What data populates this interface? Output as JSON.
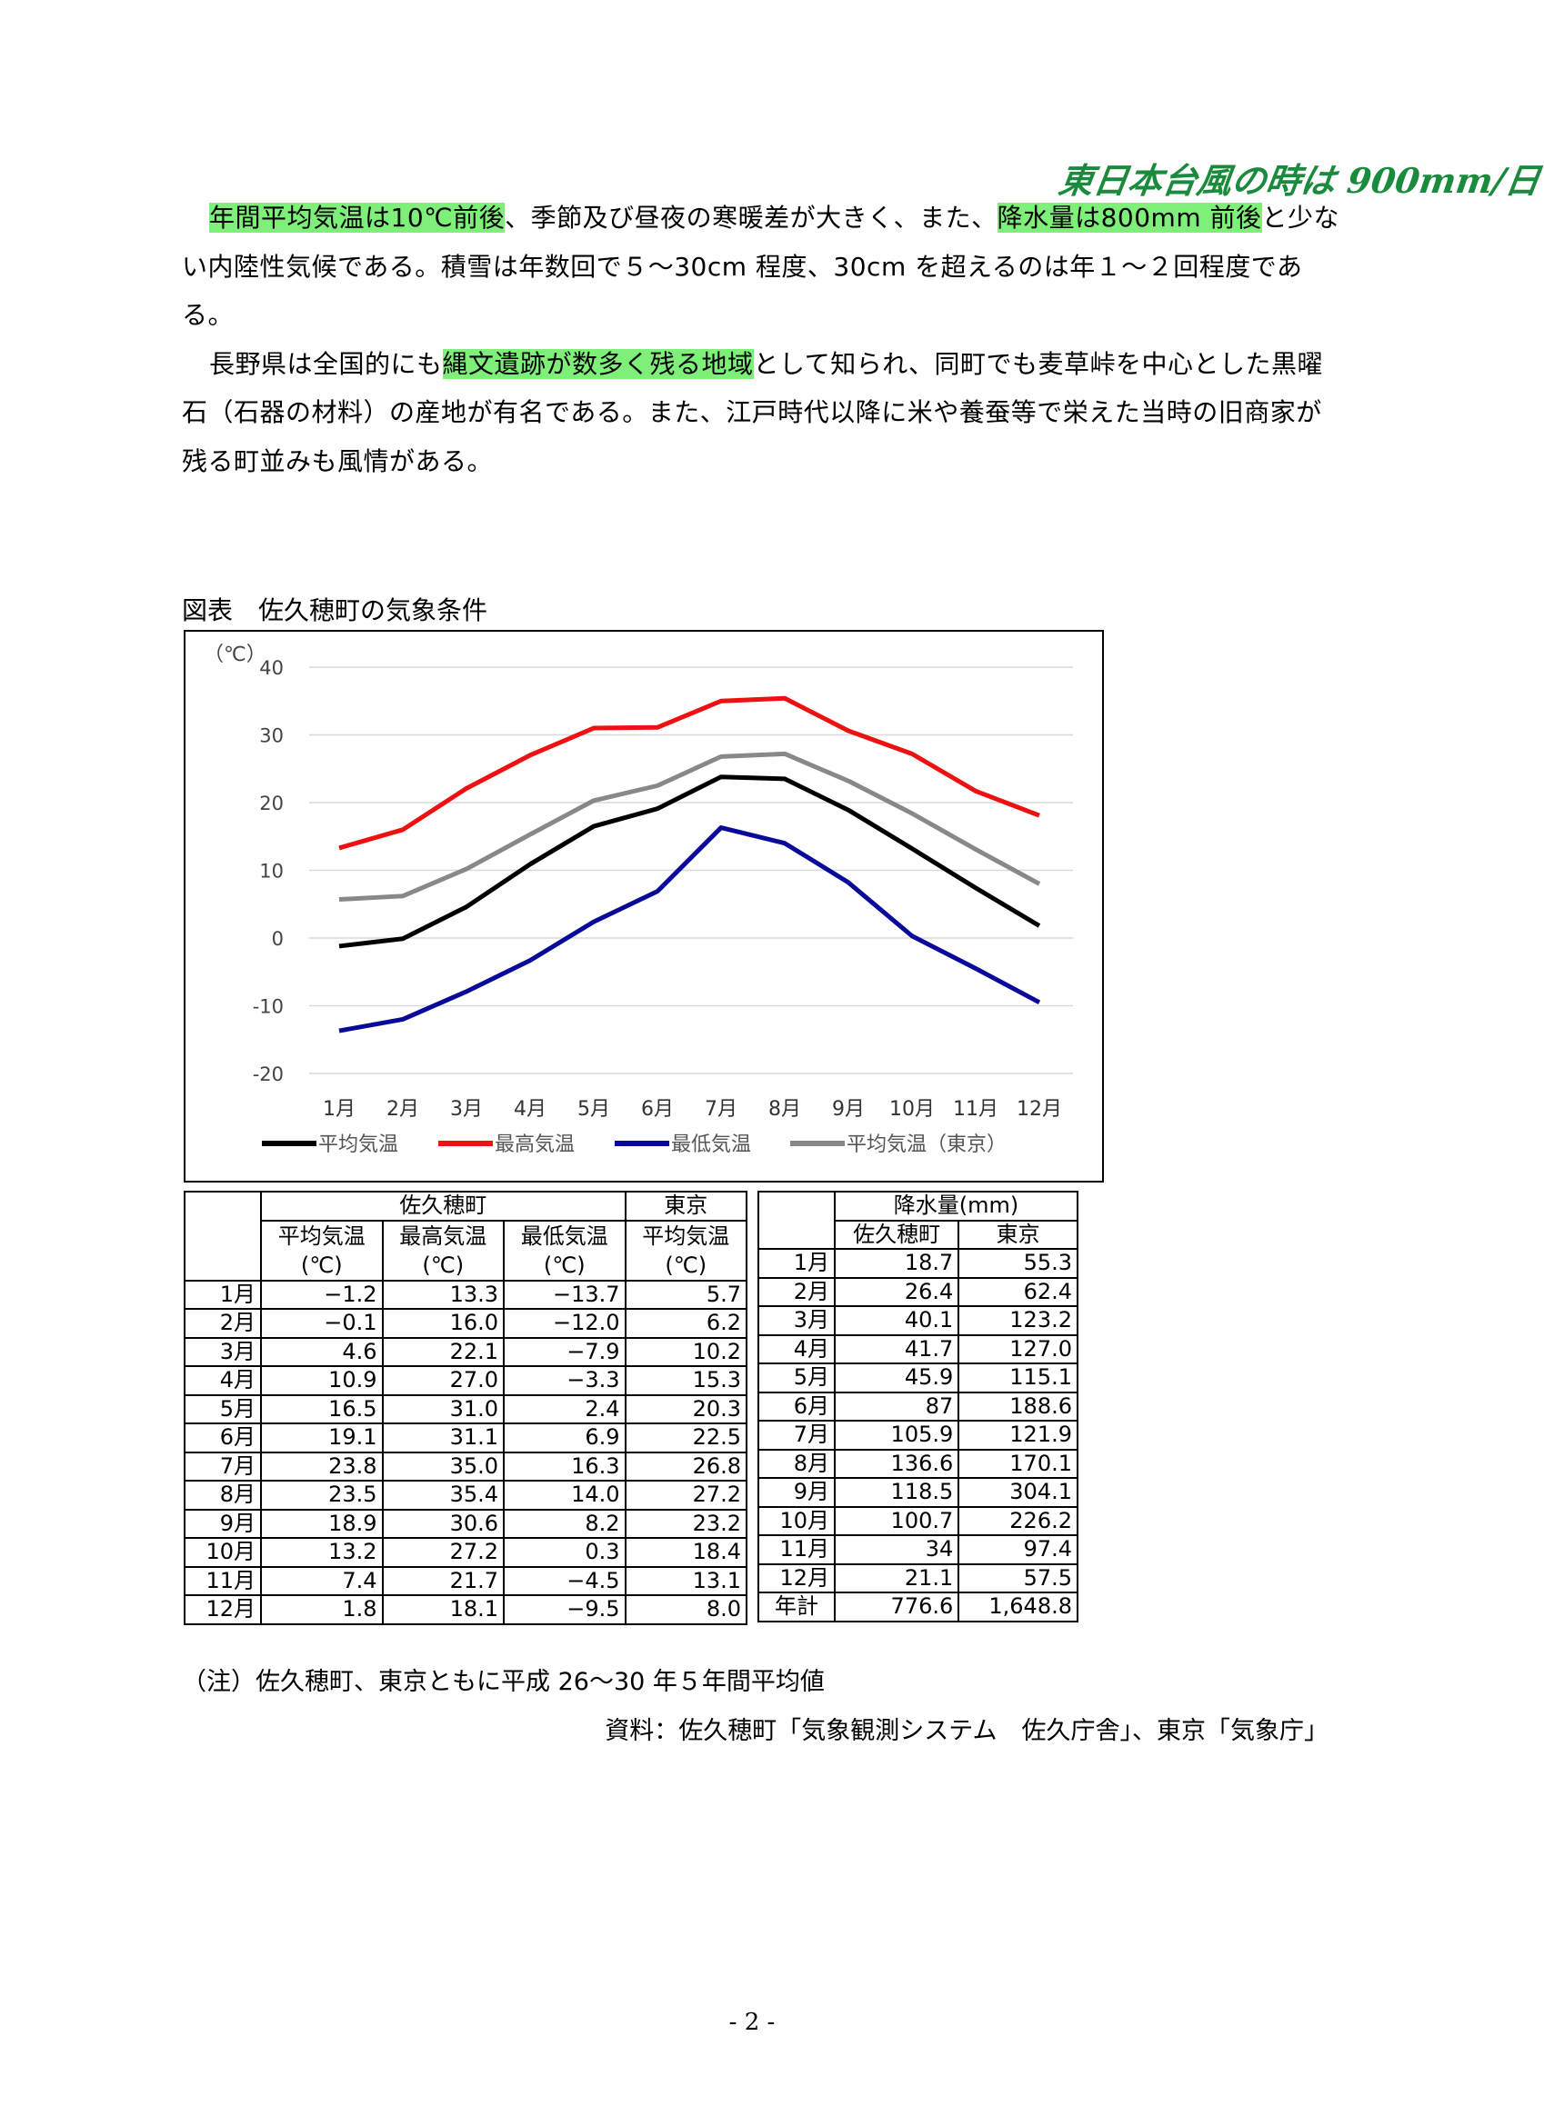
{
  "handwritten_note": "東日本台風の時は 900mm/日",
  "paragraphs": [
    [
      {
        "t": "年間平均気温は10℃前後",
        "hl": true
      },
      {
        "t": "、季節及び昼夜の寒暖差が大きく、また、",
        "hl": false
      },
      {
        "t": "降水量は800mm 前後",
        "hl": true
      },
      {
        "t": "と少ない内陸性気候である。積雪は年数回で５～30cm 程度、30cm を超えるのは年１～２回程度である。",
        "hl": false
      }
    ],
    [
      {
        "t": "長野県は全国的にも",
        "hl": false
      },
      {
        "t": "縄文遺跡が数多く残る地域",
        "hl": true
      },
      {
        "t": "として知られ、同町でも麦草峠を中心とした黒曜石（石器の材料）の産地が有名である。また、江戸時代以降に米や養蚕等で栄えた当時の旧商家が残る町並みも風情がある。",
        "hl": false
      }
    ]
  ],
  "figure_caption": "図表　佐久穂町の気象条件",
  "chart_data": {
    "type": "line",
    "ylabel": "（℃）",
    "ylim": [
      -20,
      40
    ],
    "yticks": [
      40,
      30,
      20,
      10,
      0,
      -10,
      -20
    ],
    "grid": true,
    "legend_position": "bottom",
    "categories": [
      "1月",
      "2月",
      "3月",
      "4月",
      "5月",
      "6月",
      "7月",
      "8月",
      "9月",
      "10月",
      "11月",
      "12月"
    ],
    "series": [
      {
        "name": "平均気温",
        "color": "#000000",
        "values": [
          -1.2,
          -0.1,
          4.6,
          10.9,
          16.5,
          19.1,
          23.8,
          23.5,
          18.9,
          13.2,
          7.4,
          1.8
        ]
      },
      {
        "name": "最高気温",
        "color": "#ee1111",
        "values": [
          13.3,
          16.0,
          22.1,
          27.0,
          31.0,
          31.1,
          35.0,
          35.4,
          30.6,
          27.2,
          21.7,
          18.1
        ]
      },
      {
        "name": "最低気温",
        "color": "#0a0a9a",
        "values": [
          -13.7,
          -12.0,
          -7.9,
          -3.3,
          2.4,
          6.9,
          16.3,
          14.0,
          8.2,
          0.3,
          -4.5,
          -9.5
        ]
      },
      {
        "name": "平均気温（東京）",
        "color": "#888888",
        "values": [
          5.7,
          6.2,
          10.2,
          15.3,
          20.3,
          22.5,
          26.8,
          27.2,
          23.2,
          18.4,
          13.1,
          8.0
        ]
      }
    ]
  },
  "temp_table": {
    "group1": "佐久穂町",
    "group2": "東京",
    "columns": [
      [
        "平均気温",
        "(℃)"
      ],
      [
        "最高気温",
        "(℃)"
      ],
      [
        "最低気温",
        "(℃)"
      ],
      [
        "平均気温",
        "(℃)"
      ]
    ],
    "rows": [
      [
        "1月",
        "−1.2",
        "13.3",
        "−13.7",
        "5.7"
      ],
      [
        "2月",
        "−0.1",
        "16.0",
        "−12.0",
        "6.2"
      ],
      [
        "3月",
        "4.6",
        "22.1",
        "−7.9",
        "10.2"
      ],
      [
        "4月",
        "10.9",
        "27.0",
        "−3.3",
        "15.3"
      ],
      [
        "5月",
        "16.5",
        "31.0",
        "2.4",
        "20.3"
      ],
      [
        "6月",
        "19.1",
        "31.1",
        "6.9",
        "22.5"
      ],
      [
        "7月",
        "23.8",
        "35.0",
        "16.3",
        "26.8"
      ],
      [
        "8月",
        "23.5",
        "35.4",
        "14.0",
        "27.2"
      ],
      [
        "9月",
        "18.9",
        "30.6",
        "8.2",
        "23.2"
      ],
      [
        "10月",
        "13.2",
        "27.2",
        "0.3",
        "18.4"
      ],
      [
        "11月",
        "7.4",
        "21.7",
        "−4.5",
        "13.1"
      ],
      [
        "12月",
        "1.8",
        "18.1",
        "−9.5",
        "8.0"
      ]
    ]
  },
  "rain_table": {
    "title": "降水量(mm)",
    "columns": [
      "佐久穂町",
      "東京"
    ],
    "rows": [
      [
        "1月",
        "18.7",
        "55.3"
      ],
      [
        "2月",
        "26.4",
        "62.4"
      ],
      [
        "3月",
        "40.1",
        "123.2"
      ],
      [
        "4月",
        "41.7",
        "127.0"
      ],
      [
        "5月",
        "45.9",
        "115.1"
      ],
      [
        "6月",
        "87",
        "188.6"
      ],
      [
        "7月",
        "105.9",
        "121.9"
      ],
      [
        "8月",
        "136.6",
        "170.1"
      ],
      [
        "9月",
        "118.5",
        "304.1"
      ],
      [
        "10月",
        "100.7",
        "226.2"
      ],
      [
        "11月",
        "34",
        "97.4"
      ],
      [
        "12月",
        "21.1",
        "57.5"
      ],
      [
        "年計",
        "776.6",
        "1,648.8"
      ]
    ]
  },
  "note": "（注）佐久穂町、東京ともに平成 26～30 年５年間平均値",
  "source": "資料：佐久穂町「気象観測システム　佐久庁舎」、東京「気象庁」",
  "page_number": "- 2 -"
}
